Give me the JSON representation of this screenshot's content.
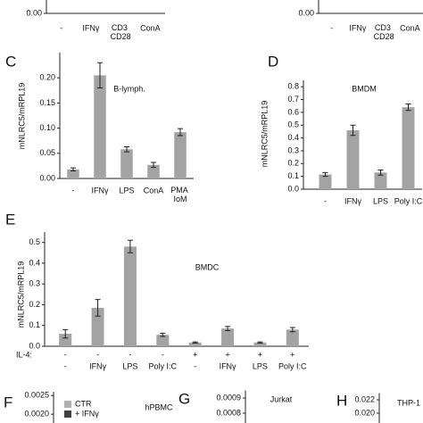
{
  "chart_data": [
    {
      "type": "bar",
      "categories": [
        "-",
        "IFNγ",
        "CD3\nCD28",
        "ConA"
      ],
      "yticks": [
        {
          "value": 0,
          "label": "0.00"
        }
      ]
    },
    {
      "type": "bar",
      "categories": [
        "-",
        "IFNγ",
        "CD3\nCD28",
        "ConA"
      ],
      "yticks": [
        {
          "value": 0,
          "label": "0.00"
        }
      ]
    },
    {
      "type": "bar",
      "letter": "C",
      "title": "B-lymph.",
      "ylabel": "mNLRC5/mRPL19",
      "categories": [
        "-",
        "IFNγ",
        "LPS",
        "ConA",
        "PMA\nIoM"
      ],
      "values": [
        0.018,
        0.205,
        0.058,
        0.027,
        0.092
      ],
      "errors": [
        0.003,
        0.025,
        0.005,
        0.005,
        0.007
      ],
      "color": "#a3a3a3",
      "ylim": [
        0,
        0.25
      ],
      "yticks": [
        {
          "value": 0,
          "label": "0.00"
        },
        0.05,
        {
          "value": 0.1,
          "label": "0.10"
        },
        0.15,
        {
          "value": 0.2,
          "label": "0.20"
        }
      ]
    },
    {
      "type": "bar",
      "letter": "D",
      "title": "BMDM",
      "ylabel": "mNLRC5/mRPL19",
      "categories": [
        "-",
        "IFNγ",
        "LPS",
        "Poly I:C"
      ],
      "values": [
        0.115,
        0.46,
        0.13,
        0.64
      ],
      "errors": [
        0.015,
        0.04,
        0.02,
        0.025
      ],
      "color": "#a3a3a3",
      "ylim": [
        0,
        0.85
      ],
      "yticks": [
        {
          "value": 0,
          "label": "0.0"
        },
        0.1,
        0.2,
        0.3,
        0.4,
        0.5,
        0.6,
        0.7,
        0.8
      ]
    },
    {
      "type": "bar",
      "letter": "E",
      "title": "BMDC",
      "ylabel": "mNLRC5/mRPL19",
      "categories": [
        "-",
        "IFNγ",
        "LPS",
        "Poly I:C",
        "-",
        "IFNγ",
        "LPS",
        "Poly I:C"
      ],
      "row_label": "IL-4:",
      "row_values": [
        "-",
        "-",
        "-",
        "-",
        "+",
        "+",
        "+",
        "+"
      ],
      "values": [
        0.06,
        0.185,
        0.48,
        0.055,
        0.018,
        0.085,
        0.018,
        0.08
      ],
      "errors": [
        0.02,
        0.04,
        0.03,
        0.008,
        0.003,
        0.01,
        0.003,
        0.01
      ],
      "color": "#a3a3a3",
      "ylim": [
        0,
        0.55
      ],
      "yticks": [
        {
          "value": 0,
          "label": "0.0"
        },
        0.1,
        0.2,
        0.3,
        0.4,
        0.5
      ]
    },
    {
      "type": "bar",
      "letter": "F",
      "title": "hPBMC",
      "ylim": [
        0,
        0.0026
      ],
      "yticks": [
        0.0025,
        {
          "value": 0.002,
          "label": "0.0020"
        }
      ],
      "series": [
        {
          "name": "CTR",
          "color": "#b0b0b0"
        },
        {
          "name": "+ IFNγ",
          "color": "#404040"
        }
      ]
    },
    {
      "type": "bar",
      "letter": "G",
      "title": "Jurkat",
      "ylim": [
        0,
        0.00095
      ],
      "yticks": [
        0.0009,
        0.0008
      ]
    },
    {
      "type": "bar",
      "letter": "H",
      "title": "THP-1",
      "ylim": [
        0,
        0.023
      ],
      "yticks": [
        0.022,
        {
          "value": 0.02,
          "label": "0.020"
        }
      ]
    }
  ]
}
